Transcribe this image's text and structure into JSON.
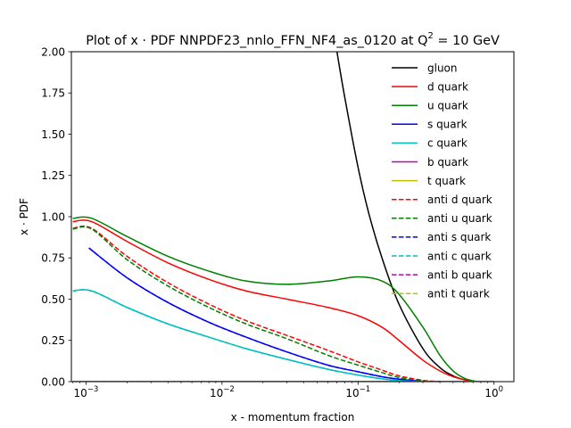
{
  "chart_data": {
    "type": "line",
    "title": "Plot of x · PDF NNPDF23_nnlo_FFN_NF4_as_0120 at Q",
    "title_superscript": "2",
    "title_suffix": " = 10 GeV",
    "xlabel": "x - momentum fraction",
    "ylabel": "x · PDF",
    "xscale": "log",
    "xlim": [
      0.00078,
      1.4
    ],
    "ylim": [
      0,
      2.0
    ],
    "x_ticks": [
      {
        "value": 0.001,
        "base": "10",
        "exp": "−3"
      },
      {
        "value": 0.01,
        "base": "10",
        "exp": "−2"
      },
      {
        "value": 0.1,
        "base": "10",
        "exp": "−1"
      },
      {
        "value": 1,
        "base": "10",
        "exp": "0"
      }
    ],
    "y_ticks": [
      "0.00",
      "0.25",
      "0.50",
      "0.75",
      "1.00",
      "1.25",
      "1.50",
      "1.75",
      "2.00"
    ],
    "legend_position": "upper right",
    "series": [
      {
        "name": "gluon",
        "color": "#000000",
        "dash": false,
        "x": [
          0.06,
          0.07,
          0.08,
          0.1,
          0.12,
          0.15,
          0.2,
          0.3,
          0.4,
          0.5,
          0.6,
          0.7,
          0.8
        ],
        "y": [
          2.35,
          2.0,
          1.72,
          1.3,
          1.02,
          0.75,
          0.47,
          0.2,
          0.085,
          0.035,
          0.012,
          0.003,
          0.0
        ]
      },
      {
        "name": "d quark",
        "color": "#ff0000",
        "dash": false,
        "x": [
          0.0008,
          0.0011,
          0.002,
          0.004,
          0.008,
          0.015,
          0.03,
          0.06,
          0.1,
          0.15,
          0.2,
          0.3,
          0.4,
          0.5,
          0.6,
          0.7,
          0.8
        ],
        "y": [
          0.97,
          0.97,
          0.85,
          0.72,
          0.62,
          0.55,
          0.5,
          0.45,
          0.4,
          0.33,
          0.25,
          0.13,
          0.065,
          0.03,
          0.012,
          0.003,
          0.0
        ]
      },
      {
        "name": "u quark",
        "color": "#008000",
        "dash": false,
        "x": [
          0.0008,
          0.0011,
          0.002,
          0.004,
          0.008,
          0.015,
          0.03,
          0.06,
          0.1,
          0.15,
          0.2,
          0.3,
          0.4,
          0.5,
          0.6,
          0.7,
          0.8
        ],
        "y": [
          0.99,
          0.99,
          0.88,
          0.76,
          0.67,
          0.61,
          0.59,
          0.61,
          0.635,
          0.61,
          0.53,
          0.33,
          0.16,
          0.065,
          0.022,
          0.005,
          0.0
        ]
      },
      {
        "name": "s quark",
        "color": "#0000ff",
        "dash": false,
        "x": [
          0.00105,
          0.002,
          0.004,
          0.008,
          0.015,
          0.03,
          0.06,
          0.1,
          0.15,
          0.2,
          0.3
        ],
        "y": [
          0.81,
          0.63,
          0.48,
          0.36,
          0.27,
          0.18,
          0.1,
          0.06,
          0.03,
          0.015,
          0.0
        ]
      },
      {
        "name": "c quark",
        "color": "#00bfbf",
        "dash": false,
        "x": [
          0.0008,
          0.0011,
          0.002,
          0.004,
          0.008,
          0.015,
          0.03,
          0.06,
          0.1,
          0.15,
          0.2,
          0.3
        ],
        "y": [
          0.55,
          0.55,
          0.45,
          0.35,
          0.27,
          0.2,
          0.135,
          0.075,
          0.04,
          0.017,
          0.006,
          0.0
        ]
      },
      {
        "name": "b quark",
        "color": "#bf00bf",
        "dash": false,
        "x": [
          0.0008,
          1.0
        ],
        "y": [
          0.0,
          0.0
        ]
      },
      {
        "name": "t quark",
        "color": "#bfbf00",
        "dash": false,
        "x": [
          0.0008,
          1.0
        ],
        "y": [
          0.0,
          0.0
        ]
      },
      {
        "name": "anti d quark",
        "color": "#ff0000",
        "dash": true,
        "x": [
          0.0008,
          0.0011,
          0.002,
          0.004,
          0.008,
          0.015,
          0.03,
          0.06,
          0.1,
          0.15,
          0.2,
          0.3,
          0.4
        ],
        "y": [
          0.93,
          0.93,
          0.76,
          0.6,
          0.47,
          0.37,
          0.28,
          0.19,
          0.12,
          0.07,
          0.035,
          0.008,
          0.0
        ]
      },
      {
        "name": "anti u quark",
        "color": "#008000",
        "dash": true,
        "x": [
          0.0008,
          0.0011,
          0.002,
          0.004,
          0.008,
          0.015,
          0.03,
          0.06,
          0.1,
          0.15,
          0.2,
          0.3,
          0.4
        ],
        "y": [
          0.925,
          0.925,
          0.74,
          0.58,
          0.45,
          0.35,
          0.26,
          0.16,
          0.1,
          0.055,
          0.025,
          0.005,
          0.0
        ]
      },
      {
        "name": "anti s quark",
        "color": "#0000ff",
        "dash": true,
        "x": [
          0.00105,
          0.002,
          0.004,
          0.008,
          0.015,
          0.03,
          0.06,
          0.1,
          0.15,
          0.2,
          0.3
        ],
        "y": [
          0.81,
          0.63,
          0.48,
          0.36,
          0.27,
          0.18,
          0.1,
          0.06,
          0.03,
          0.015,
          0.0
        ]
      },
      {
        "name": "anti c quark",
        "color": "#00bfbf",
        "dash": true,
        "x": [
          0.0008,
          0.0011,
          0.002,
          0.004,
          0.008,
          0.015,
          0.03,
          0.06,
          0.1,
          0.15,
          0.2,
          0.3
        ],
        "y": [
          0.55,
          0.55,
          0.45,
          0.35,
          0.27,
          0.2,
          0.135,
          0.075,
          0.04,
          0.017,
          0.006,
          0.0
        ]
      },
      {
        "name": "anti b quark",
        "color": "#bf00bf",
        "dash": true,
        "x": [
          0.0008,
          1.0
        ],
        "y": [
          0.0,
          0.0
        ]
      },
      {
        "name": "anti t quark",
        "color": "#bfbf00",
        "dash": true,
        "x": [
          0.0008,
          1.0
        ],
        "y": [
          0.0,
          0.0
        ]
      }
    ]
  }
}
